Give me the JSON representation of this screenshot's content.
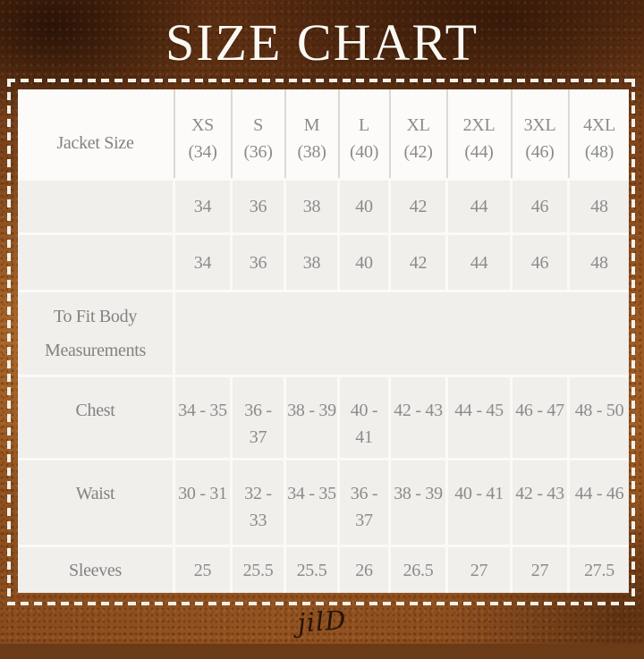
{
  "title": "SIZE CHART",
  "signature": "jilD",
  "colors": {
    "leather_brown": "#8a4c1d",
    "title_text": "#fbf9f4",
    "stitch_dash": "#f4f1ea",
    "header_cell_bg": "#fcfbf9",
    "data_cell_bg": "#f0efec",
    "table_text": "#8b8b8b"
  },
  "table": {
    "corner_label": "Jacket Size",
    "columns": [
      {
        "size": "XS",
        "num": "(34)"
      },
      {
        "size": "S",
        "num": "(36)"
      },
      {
        "size": "M",
        "num": "(38)"
      },
      {
        "size": "L",
        "num": "(40)"
      },
      {
        "size": "XL",
        "num": "(42)"
      },
      {
        "size": "2XL",
        "num": "(44)"
      },
      {
        "size": "3XL",
        "num": "(46)"
      },
      {
        "size": "4XL",
        "num": "(48)"
      }
    ],
    "rows": [
      {
        "label": "",
        "values": [
          "34",
          "36",
          "38",
          "40",
          "42",
          "44",
          "46",
          "48"
        ]
      },
      {
        "label": "",
        "values": [
          "34",
          "36",
          "38",
          "40",
          "42",
          "44",
          "46",
          "48"
        ]
      },
      {
        "label": "To Fit Body Measurements",
        "values": []
      },
      {
        "label": "Chest",
        "values": [
          "34 - 35",
          "36 -\n37",
          "38 - 39",
          "40 - 41",
          "42 - 43",
          "44 - 45",
          "46 - 47",
          "48 - 50"
        ]
      },
      {
        "label": "Waist",
        "values": [
          "30 - 31",
          "32 -\n33",
          "34 - 35",
          "36 - 37",
          "38 - 39",
          "40 - 41",
          "42 - 43",
          "44 - 46"
        ]
      },
      {
        "label": "Sleeves",
        "values": [
          "25",
          "25.5",
          "25.5",
          "26",
          "26.5",
          "27",
          "27",
          "27.5"
        ]
      }
    ]
  },
  "chart_data": {
    "type": "table",
    "title": "SIZE CHART",
    "columns": [
      "Jacket Size",
      "XS (34)",
      "S (36)",
      "M (38)",
      "L (40)",
      "XL (42)",
      "2XL (44)",
      "3XL (46)",
      "4XL (48)"
    ],
    "rows": [
      [
        "",
        "34",
        "36",
        "38",
        "40",
        "42",
        "44",
        "46",
        "48"
      ],
      [
        "",
        "34",
        "36",
        "38",
        "40",
        "42",
        "44",
        "46",
        "48"
      ],
      [
        "To Fit Body Measurements",
        "",
        "",
        "",
        "",
        "",
        "",
        "",
        ""
      ],
      [
        "Chest",
        "34 - 35",
        "36 - 37",
        "38 - 39",
        "40 - 41",
        "42 - 43",
        "44 - 45",
        "46 - 47",
        "48 - 50"
      ],
      [
        "Waist",
        "30 - 31",
        "32 - 33",
        "34 - 35",
        "36 - 37",
        "38 - 39",
        "40 - 41",
        "42 - 43",
        "44 - 46"
      ],
      [
        "Sleeves",
        "25",
        "25.5",
        "25.5",
        "26",
        "26.5",
        "27",
        "27",
        "27.5"
      ]
    ]
  }
}
